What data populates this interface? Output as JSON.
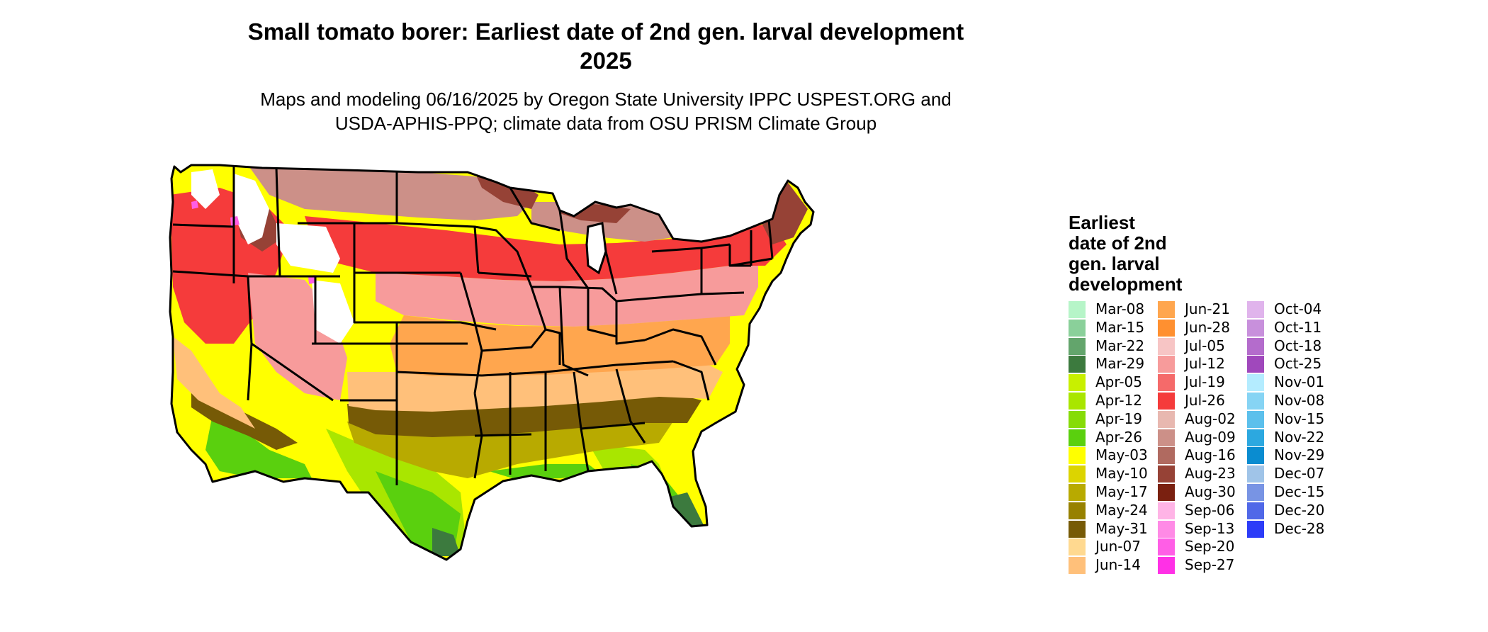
{
  "title_line1": "Small tomato borer: Earliest date of 2nd gen. larval development",
  "title_line2": "2025",
  "subtitle_line1": "Maps and modeling 06/16/2025 by Oregon State University IPPC USPEST.ORG and",
  "subtitle_line2": "USDA-APHIS-PPQ; climate data from OSU PRISM Climate Group",
  "legend": {
    "title_lines": [
      "Earliest",
      "date of 2nd",
      "gen. larval",
      "development"
    ],
    "items": [
      {
        "label": "Mar-08",
        "color": "#b6f5c8"
      },
      {
        "label": "Mar-15",
        "color": "#8ad09a"
      },
      {
        "label": "Mar-22",
        "color": "#63a56c"
      },
      {
        "label": "Mar-29",
        "color": "#3c7a3e"
      },
      {
        "label": "Apr-05",
        "color": "#c8f000"
      },
      {
        "label": "Apr-12",
        "color": "#a9e600"
      },
      {
        "label": "Apr-19",
        "color": "#86dc06"
      },
      {
        "label": "Apr-26",
        "color": "#5ad00e"
      },
      {
        "label": "May-03",
        "color": "#ffff00"
      },
      {
        "label": "May-10",
        "color": "#dcd400"
      },
      {
        "label": "May-17",
        "color": "#b8aa00"
      },
      {
        "label": "May-24",
        "color": "#978100"
      },
      {
        "label": "May-31",
        "color": "#765a06"
      },
      {
        "label": "Jun-07",
        "color": "#ffd990"
      },
      {
        "label": "Jun-14",
        "color": "#ffc07a"
      },
      {
        "label": "Jun-21",
        "color": "#ffa64e"
      },
      {
        "label": "Jun-28",
        "color": "#ff9030"
      },
      {
        "label": "Jul-05",
        "color": "#f7c5c5"
      },
      {
        "label": "Jul-12",
        "color": "#f79b9b"
      },
      {
        "label": "Jul-19",
        "color": "#f56a6a"
      },
      {
        "label": "Jul-26",
        "color": "#f53b3b"
      },
      {
        "label": "Aug-02",
        "color": "#e8b8b0"
      },
      {
        "label": "Aug-09",
        "color": "#cc9088"
      },
      {
        "label": "Aug-16",
        "color": "#b06a60"
      },
      {
        "label": "Aug-23",
        "color": "#964236"
      },
      {
        "label": "Aug-30",
        "color": "#7a2010"
      },
      {
        "label": "Sep-06",
        "color": "#ffb4e6"
      },
      {
        "label": "Sep-13",
        "color": "#ff8ae6"
      },
      {
        "label": "Sep-20",
        "color": "#ff5ee6"
      },
      {
        "label": "Sep-27",
        "color": "#ff30e6"
      },
      {
        "label": "Oct-04",
        "color": "#e0b4ec"
      },
      {
        "label": "Oct-11",
        "color": "#c890dc"
      },
      {
        "label": "Oct-18",
        "color": "#b46ccc"
      },
      {
        "label": "Oct-25",
        "color": "#a048bc"
      },
      {
        "label": "Nov-01",
        "color": "#b4ecff"
      },
      {
        "label": "Nov-08",
        "color": "#86d4f4"
      },
      {
        "label": "Nov-15",
        "color": "#5cc0ec"
      },
      {
        "label": "Nov-22",
        "color": "#2ca8e0"
      },
      {
        "label": "Nov-29",
        "color": "#0a8cd0"
      },
      {
        "label": "Dec-07",
        "color": "#a0c4e8"
      },
      {
        "label": "Dec-15",
        "color": "#7894e4"
      },
      {
        "label": "Dec-20",
        "color": "#5068e8"
      },
      {
        "label": "Dec-28",
        "color": "#2c3cf8"
      }
    ]
  },
  "map_zones": [
    {
      "zone": "south-tip-florida-texas",
      "color": "#3c7a3e"
    },
    {
      "zone": "gulf-coast",
      "color": "#5ad00e"
    },
    {
      "zone": "lower-south",
      "color": "#a9e600"
    },
    {
      "zone": "deep-south",
      "color": "#ffff00"
    },
    {
      "zone": "mid-south",
      "color": "#b8aa00"
    },
    {
      "zone": "upper-south",
      "color": "#765a06"
    },
    {
      "zone": "border-south",
      "color": "#ffc07a"
    },
    {
      "zone": "central",
      "color": "#ffa64e"
    },
    {
      "zone": "mid-north",
      "color": "#f79b9b"
    },
    {
      "zone": "north",
      "color": "#f53b3b"
    },
    {
      "zone": "far-north",
      "color": "#cc9088"
    },
    {
      "zone": "northern-edge",
      "color": "#964236"
    },
    {
      "zone": "mountains",
      "color": "#ffffff"
    },
    {
      "zone": "mountain-fringe",
      "color": "#ff5ee6"
    }
  ]
}
